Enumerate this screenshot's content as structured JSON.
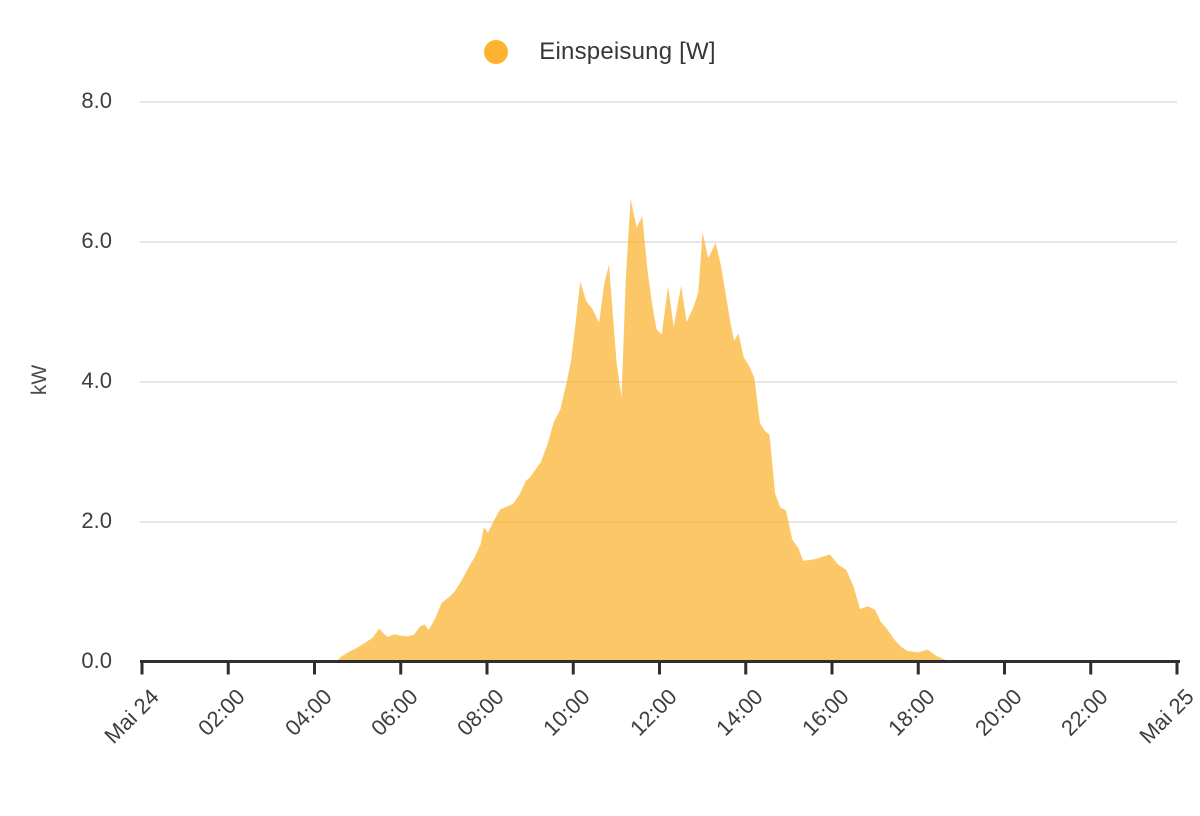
{
  "legend": {
    "label": "Einspeisung [W]",
    "marker_color": "#FBB32D"
  },
  "y_axis": {
    "unit_label": "kW",
    "tick_labels": [
      "0.0",
      "2.0",
      "4.0",
      "6.0",
      "8.0"
    ],
    "min": 0,
    "max": 8
  },
  "x_axis": {
    "tick_labels": [
      "Mai 24",
      "02:00",
      "04:00",
      "06:00",
      "08:00",
      "10:00",
      "12:00",
      "14:00",
      "16:00",
      "18:00",
      "20:00",
      "22:00",
      "Mai 25"
    ]
  },
  "colors": {
    "series": "#FBB32D",
    "area_fill": "rgba(251,179,45,0.72)",
    "gridline": "#E6E6E6",
    "axis_line": "#2E2E2E",
    "tick_text": "#3E3E3E",
    "legend_text": "#373737"
  },
  "chart_data": {
    "type": "area",
    "title": "",
    "xlabel": "",
    "ylabel": "kW",
    "x_unit": "hours (Mai 24 00:00 → Mai 25 00:00)",
    "x_range": [
      0,
      24
    ],
    "y_range": [
      0,
      8
    ],
    "grid": "horizontal",
    "legend_position": "top",
    "series": [
      {
        "name": "Einspeisung [W]",
        "color": "#FBB32D",
        "points": [
          [
            4.5,
            0
          ],
          [
            4.62,
            0.07
          ],
          [
            4.8,
            0.14
          ],
          [
            5.0,
            0.2
          ],
          [
            5.2,
            0.28
          ],
          [
            5.35,
            0.34
          ],
          [
            5.5,
            0.47
          ],
          [
            5.62,
            0.39
          ],
          [
            5.7,
            0.35
          ],
          [
            5.85,
            0.39
          ],
          [
            6.0,
            0.37
          ],
          [
            6.15,
            0.36
          ],
          [
            6.3,
            0.38
          ],
          [
            6.45,
            0.5
          ],
          [
            6.55,
            0.53
          ],
          [
            6.65,
            0.45
          ],
          [
            6.8,
            0.62
          ],
          [
            6.95,
            0.84
          ],
          [
            7.1,
            0.91
          ],
          [
            7.25,
            1.0
          ],
          [
            7.42,
            1.17
          ],
          [
            7.58,
            1.35
          ],
          [
            7.72,
            1.5
          ],
          [
            7.85,
            1.67
          ],
          [
            7.93,
            1.92
          ],
          [
            8.02,
            1.84
          ],
          [
            8.15,
            2.0
          ],
          [
            8.3,
            2.17
          ],
          [
            8.45,
            2.21
          ],
          [
            8.6,
            2.25
          ],
          [
            8.75,
            2.38
          ],
          [
            8.9,
            2.58
          ],
          [
            9.0,
            2.63
          ],
          [
            9.12,
            2.74
          ],
          [
            9.25,
            2.85
          ],
          [
            9.4,
            3.1
          ],
          [
            9.55,
            3.42
          ],
          [
            9.7,
            3.6
          ],
          [
            9.85,
            4.0
          ],
          [
            9.95,
            4.3
          ],
          [
            10.05,
            4.81
          ],
          [
            10.16,
            5.43
          ],
          [
            10.3,
            5.15
          ],
          [
            10.45,
            5.03
          ],
          [
            10.6,
            4.84
          ],
          [
            10.72,
            5.4
          ],
          [
            10.83,
            5.67
          ],
          [
            11.0,
            4.3
          ],
          [
            11.12,
            3.77
          ],
          [
            11.22,
            5.5
          ],
          [
            11.33,
            6.61
          ],
          [
            11.47,
            6.2
          ],
          [
            11.6,
            6.36
          ],
          [
            11.72,
            5.6
          ],
          [
            11.83,
            5.1
          ],
          [
            11.93,
            4.75
          ],
          [
            12.05,
            4.67
          ],
          [
            12.2,
            5.36
          ],
          [
            12.33,
            4.78
          ],
          [
            12.5,
            5.37
          ],
          [
            12.63,
            4.85
          ],
          [
            12.78,
            5.05
          ],
          [
            12.9,
            5.27
          ],
          [
            13.0,
            6.13
          ],
          [
            13.13,
            5.76
          ],
          [
            13.3,
            5.98
          ],
          [
            13.43,
            5.64
          ],
          [
            13.53,
            5.27
          ],
          [
            13.63,
            4.89
          ],
          [
            13.73,
            4.58
          ],
          [
            13.83,
            4.69
          ],
          [
            13.95,
            4.35
          ],
          [
            14.08,
            4.22
          ],
          [
            14.2,
            4.05
          ],
          [
            14.33,
            3.4
          ],
          [
            14.45,
            3.29
          ],
          [
            14.55,
            3.24
          ],
          [
            14.68,
            2.4
          ],
          [
            14.8,
            2.2
          ],
          [
            14.93,
            2.16
          ],
          [
            15.08,
            1.74
          ],
          [
            15.22,
            1.62
          ],
          [
            15.33,
            1.44
          ],
          [
            15.6,
            1.46
          ],
          [
            15.95,
            1.53
          ],
          [
            16.15,
            1.38
          ],
          [
            16.33,
            1.31
          ],
          [
            16.5,
            1.07
          ],
          [
            16.65,
            0.75
          ],
          [
            16.83,
            0.79
          ],
          [
            17.0,
            0.74
          ],
          [
            17.13,
            0.57
          ],
          [
            17.28,
            0.46
          ],
          [
            17.45,
            0.31
          ],
          [
            17.6,
            0.21
          ],
          [
            17.75,
            0.15
          ],
          [
            18.0,
            0.13
          ],
          [
            18.22,
            0.17
          ],
          [
            18.42,
            0.08
          ],
          [
            18.6,
            0.03
          ],
          [
            18.75,
            0
          ]
        ]
      }
    ]
  }
}
